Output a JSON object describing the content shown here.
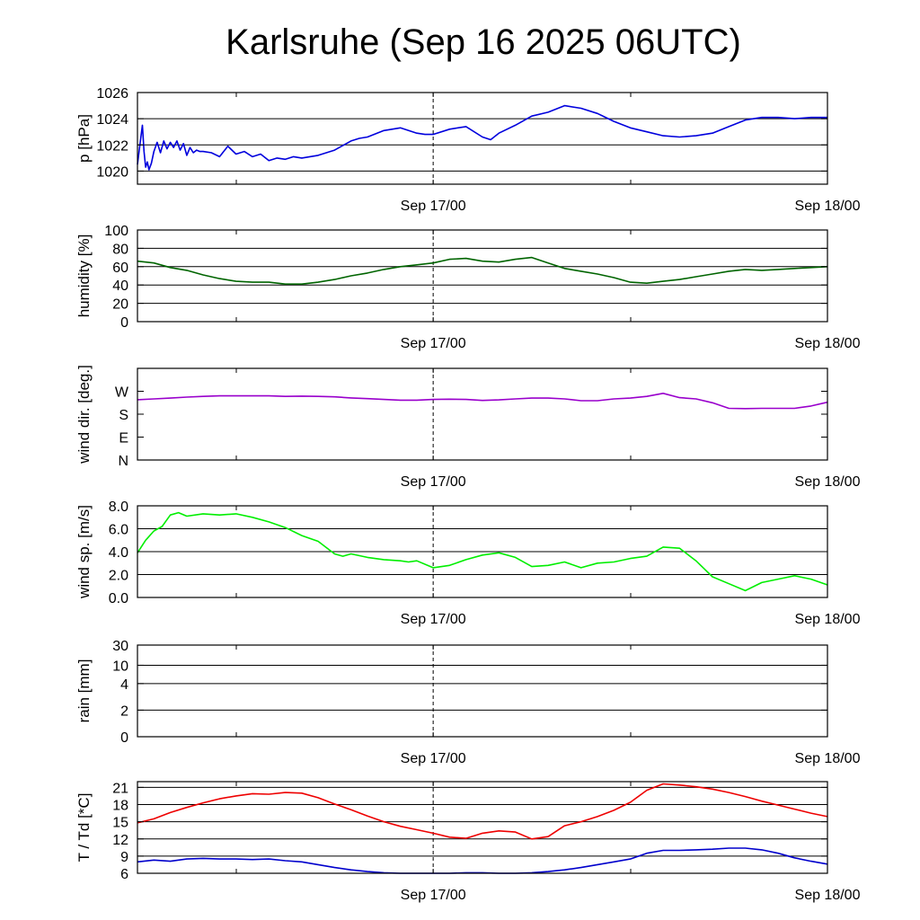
{
  "title": "Karlsruhe (Sep 16 2025 06UTC)",
  "chart_data": [
    {
      "type": "line",
      "ylabel": "p [hPa]",
      "ylim": [
        1019,
        1026
      ],
      "yticks": [
        1020,
        1022,
        1024,
        1026
      ],
      "ytick_labels": [
        "1020",
        "1022",
        "1024",
        "1026"
      ],
      "grid_y": [
        1020,
        1022,
        1024
      ],
      "xlim": [
        0,
        42
      ],
      "xtick_labels": [
        {
          "x": 18,
          "label": "Sep 17/00"
        },
        {
          "x": 42,
          "label": "Sep 18/00"
        }
      ],
      "series": [
        {
          "color": "#0000dd",
          "x": [
            0,
            0.15,
            0.3,
            0.4,
            0.5,
            0.6,
            0.7,
            0.85,
            1.0,
            1.2,
            1.4,
            1.6,
            1.8,
            2.0,
            2.2,
            2.4,
            2.6,
            2.8,
            3.0,
            3.2,
            3.4,
            3.6,
            3.8,
            4.0,
            4.5,
            5.0,
            5.5,
            6.0,
            6.5,
            7.0,
            7.5,
            8.0,
            8.5,
            9.0,
            9.5,
            10.0,
            11,
            12,
            13,
            13.5,
            14,
            15,
            16,
            17,
            17.5,
            18,
            19,
            20,
            21,
            21.5,
            22,
            23,
            24,
            25,
            26,
            27,
            28,
            29,
            30,
            31,
            32,
            33,
            34,
            35,
            36,
            37,
            38,
            39,
            40,
            41,
            42
          ],
          "y": [
            1020.5,
            1022.0,
            1023.5,
            1021.5,
            1020.3,
            1020.7,
            1020.1,
            1020.6,
            1021.5,
            1022.2,
            1021.4,
            1022.3,
            1021.7,
            1022.2,
            1021.8,
            1022.3,
            1021.6,
            1022.1,
            1021.2,
            1021.8,
            1021.4,
            1021.6,
            1021.5,
            1021.5,
            1021.4,
            1021.1,
            1021.9,
            1021.3,
            1021.5,
            1021.1,
            1021.3,
            1020.8,
            1021.0,
            1020.9,
            1021.1,
            1021.0,
            1021.2,
            1021.6,
            1022.3,
            1022.5,
            1022.6,
            1023.1,
            1023.3,
            1022.9,
            1022.8,
            1022.8,
            1023.2,
            1023.4,
            1022.6,
            1022.4,
            1022.9,
            1023.5,
            1024.2,
            1024.5,
            1025.0,
            1024.8,
            1024.4,
            1023.8,
            1023.3,
            1023.0,
            1022.7,
            1022.6,
            1022.7,
            1022.9,
            1023.4,
            1023.9,
            1024.1,
            1024.1,
            1024.0,
            1024.1,
            1024.1
          ]
        }
      ]
    },
    {
      "type": "line",
      "ylabel": "humidity [%]",
      "ylim": [
        0,
        100
      ],
      "yticks": [
        0,
        20,
        40,
        60,
        80,
        100
      ],
      "ytick_labels": [
        "0",
        "20",
        "40",
        "60",
        "80",
        "100"
      ],
      "grid_y": [
        20,
        40,
        60,
        80
      ],
      "xlim": [
        0,
        42
      ],
      "xtick_labels": [
        {
          "x": 18,
          "label": "Sep 17/00"
        },
        {
          "x": 42,
          "label": "Sep 18/00"
        }
      ],
      "series": [
        {
          "color": "#006400",
          "x": [
            0,
            1,
            2,
            3,
            4,
            5,
            6,
            7,
            8,
            9,
            10,
            11,
            12,
            13,
            14,
            15,
            16,
            17,
            18,
            19,
            20,
            21,
            22,
            23,
            24,
            25,
            26,
            27,
            28,
            29,
            30,
            31,
            32,
            33,
            34,
            35,
            36,
            37,
            38,
            39,
            40,
            41,
            42
          ],
          "y": [
            66,
            64,
            59,
            56,
            51,
            47,
            44,
            43,
            43,
            41,
            41,
            43,
            46,
            50,
            53,
            57,
            60,
            62,
            64,
            68,
            69,
            66,
            65,
            68,
            70,
            64,
            58,
            55,
            52,
            48,
            43,
            42,
            44,
            46,
            49,
            52,
            55,
            57,
            56,
            57,
            58,
            59,
            60
          ]
        }
      ]
    },
    {
      "type": "line",
      "ylabel": "wind dir. [deg.]",
      "ylim": [
        0,
        360
      ],
      "yticks": [
        0,
        90,
        180,
        270
      ],
      "ytick_labels": [
        "N",
        "E",
        "S",
        "W"
      ],
      "grid_y": [],
      "xlim": [
        0,
        42
      ],
      "xtick_labels": [
        {
          "x": 18,
          "label": "Sep 17/00"
        },
        {
          "x": 42,
          "label": "Sep 18/00"
        }
      ],
      "series": [
        {
          "color": "#9900cc",
          "x": [
            0,
            1,
            2,
            3,
            4,
            5,
            6,
            7,
            8,
            9,
            10,
            11,
            12,
            13,
            14,
            15,
            16,
            17,
            18,
            19,
            20,
            21,
            22,
            23,
            24,
            25,
            26,
            27,
            28,
            29,
            30,
            31,
            32,
            33,
            34,
            35,
            36,
            37,
            38,
            39,
            40,
            41,
            42
          ],
          "y": [
            237,
            240,
            243,
            247,
            250,
            252,
            252,
            252,
            252,
            250,
            251,
            250,
            248,
            244,
            241,
            238,
            235,
            235,
            238,
            239,
            238,
            234,
            236,
            240,
            243,
            243,
            240,
            233,
            233,
            240,
            243,
            250,
            262,
            245,
            240,
            225,
            203,
            202,
            203,
            203,
            203,
            212,
            227
          ]
        }
      ]
    },
    {
      "type": "line",
      "ylabel": "wind sp. [m/s]",
      "ylim": [
        0,
        8
      ],
      "yticks": [
        0,
        2,
        4,
        6,
        8
      ],
      "ytick_labels": [
        "0.0",
        "2.0",
        "4.0",
        "6.0",
        "8.0"
      ],
      "grid_y": [
        2,
        4,
        6
      ],
      "xlim": [
        0,
        42
      ],
      "xtick_labels": [
        {
          "x": 18,
          "label": "Sep 17/00"
        },
        {
          "x": 42,
          "label": "Sep 18/00"
        }
      ],
      "series": [
        {
          "color": "#00ee00",
          "x": [
            0,
            0.5,
            1,
            1.5,
            2,
            2.5,
            3,
            4,
            5,
            6,
            7,
            8,
            9,
            10,
            11,
            12,
            12.5,
            13,
            14,
            15,
            16,
            16.5,
            17,
            18,
            19,
            20,
            21,
            22,
            23,
            24,
            25,
            26,
            27,
            28,
            29,
            30,
            31,
            32,
            33,
            34,
            35,
            36,
            37,
            38,
            39,
            40,
            41,
            42
          ],
          "y": [
            3.9,
            5.0,
            5.8,
            6.2,
            7.2,
            7.4,
            7.1,
            7.3,
            7.2,
            7.3,
            7.0,
            6.6,
            6.1,
            5.4,
            4.9,
            3.8,
            3.6,
            3.8,
            3.5,
            3.3,
            3.2,
            3.1,
            3.2,
            2.6,
            2.8,
            3.3,
            3.7,
            3.9,
            3.5,
            2.7,
            2.8,
            3.1,
            2.6,
            3.0,
            3.1,
            3.4,
            3.6,
            4.4,
            4.3,
            3.2,
            1.8,
            1.2,
            0.6,
            1.3,
            1.6,
            1.9,
            1.6,
            1.1
          ]
        }
      ]
    },
    {
      "type": "line",
      "ylabel": "rain [mm]",
      "ylim": [
        0,
        30
      ],
      "yticks": [
        0,
        2,
        4,
        10,
        30
      ],
      "ytick_labels": [
        "0",
        "2",
        "4",
        "10",
        "30"
      ],
      "ytick_positions": [
        0.0,
        0.29,
        0.58,
        0.78,
        1.0
      ],
      "grid_y": [
        2,
        4,
        10,
        30
      ],
      "xlim": [
        0,
        42
      ],
      "xtick_labels": [
        {
          "x": 18,
          "label": "Sep 17/00"
        },
        {
          "x": 42,
          "label": "Sep 18/00"
        }
      ],
      "series": []
    },
    {
      "type": "line",
      "ylabel": "T / Td [*C]",
      "ylim": [
        6,
        22
      ],
      "yticks": [
        6,
        9,
        12,
        15,
        18,
        21
      ],
      "ytick_labels": [
        "6",
        "9",
        "12",
        "15",
        "18",
        "21"
      ],
      "grid_y": [
        9,
        12,
        15,
        18,
        21
      ],
      "xlim": [
        0,
        42
      ],
      "xtick_labels": [
        {
          "x": 18,
          "label": "Sep 17/00"
        },
        {
          "x": 42,
          "label": "Sep 18/00"
        }
      ],
      "series": [
        {
          "color": "#ee0000",
          "x": [
            0,
            1,
            2,
            3,
            4,
            5,
            6,
            7,
            8,
            9,
            10,
            11,
            12,
            13,
            14,
            15,
            16,
            17,
            18,
            19,
            20,
            21,
            22,
            23,
            24,
            25,
            26,
            27,
            28,
            29,
            30,
            31,
            32,
            33,
            34,
            35,
            36,
            37,
            38,
            39,
            40,
            41,
            42
          ],
          "y": [
            14.8,
            15.5,
            16.6,
            17.5,
            18.3,
            19.0,
            19.5,
            19.9,
            19.8,
            20.1,
            20.0,
            19.2,
            18.1,
            17.1,
            16.0,
            15.0,
            14.2,
            13.6,
            13.0,
            12.3,
            12.1,
            13.0,
            13.4,
            13.2,
            12.0,
            12.4,
            14.3,
            15.0,
            15.9,
            17.0,
            18.4,
            20.5,
            21.6,
            21.4,
            21.1,
            20.7,
            20.1,
            19.4,
            18.6,
            17.9,
            17.2,
            16.5,
            15.9
          ]
        },
        {
          "color": "#0000cc",
          "x": [
            0,
            1,
            2,
            3,
            4,
            5,
            6,
            7,
            8,
            9,
            10,
            11,
            12,
            13,
            14,
            15,
            16,
            17,
            18,
            19,
            20,
            21,
            22,
            23,
            24,
            25,
            26,
            27,
            28,
            29,
            30,
            31,
            32,
            33,
            34,
            35,
            36,
            37,
            38,
            39,
            40,
            41,
            42
          ],
          "y": [
            8.0,
            8.3,
            8.1,
            8.5,
            8.6,
            8.5,
            8.5,
            8.4,
            8.5,
            8.2,
            8.0,
            7.5,
            7.0,
            6.6,
            6.3,
            6.1,
            6.0,
            6.0,
            6.0,
            6.0,
            6.1,
            6.1,
            6.0,
            6.0,
            6.1,
            6.3,
            6.6,
            7.0,
            7.5,
            8.0,
            8.5,
            9.5,
            10.0,
            10.0,
            10.1,
            10.2,
            10.4,
            10.4,
            10.1,
            9.5,
            8.7,
            8.1,
            7.6
          ]
        }
      ]
    }
  ]
}
